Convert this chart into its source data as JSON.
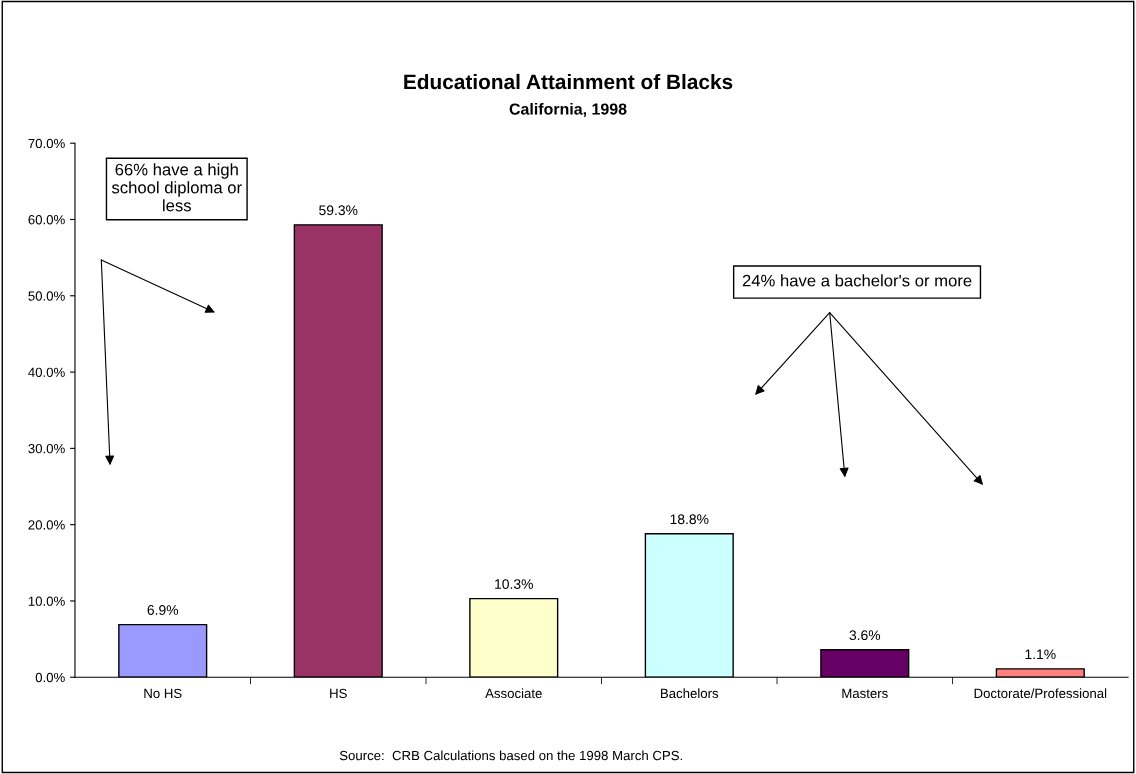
{
  "chart_data": {
    "type": "bar",
    "title": "Educational Attainment of Blacks",
    "subtitle": "California, 1998",
    "categories": [
      "No HS",
      "HS",
      "Associate",
      "Bachelors",
      "Masters",
      "Doctorate/Professional"
    ],
    "values": [
      6.9,
      59.3,
      10.3,
      18.8,
      3.6,
      1.1
    ],
    "colors": [
      "#9999ff",
      "#993366",
      "#ffffcc",
      "#ccffff",
      "#660066",
      "#ff8080"
    ],
    "value_labels": [
      "6.9%",
      "59.3%",
      "10.3%",
      "18.8%",
      "3.6%",
      "1.1%"
    ],
    "ylim": [
      0,
      70
    ],
    "yticks": [
      {
        "value": 0,
        "label": "0.0%"
      },
      {
        "value": 10,
        "label": "10.0%"
      },
      {
        "value": 20,
        "label": "20.0%"
      },
      {
        "value": 30,
        "label": "30.0%"
      },
      {
        "value": 40,
        "label": "40.0%"
      },
      {
        "value": 50,
        "label": "50.0%"
      },
      {
        "value": 60,
        "label": "60.0%"
      },
      {
        "value": 70,
        "label": "70.0%"
      }
    ],
    "grid": false,
    "legend": false,
    "annotations": [
      "66% have a high\nschool diploma or\nless",
      "24% have a bachelor's or more",
      "Source:  CRB Calculations based on the 1998 March CPS."
    ]
  }
}
